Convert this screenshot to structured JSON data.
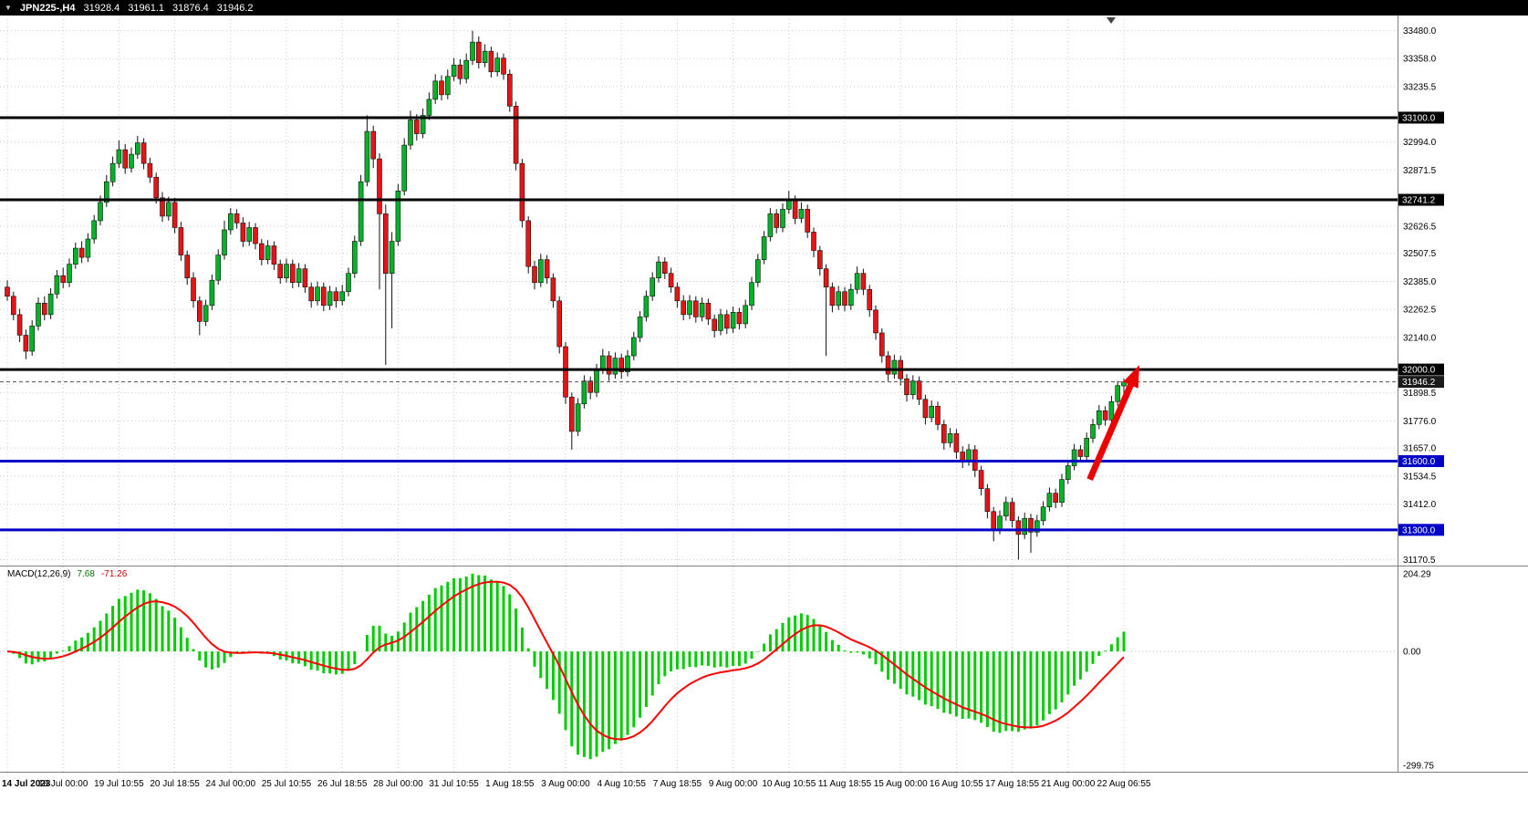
{
  "title_bar": {
    "symbol_period": "JPN225-,H4",
    "open": "31928.4",
    "high": "31961.1",
    "low": "31876.4",
    "close": "31946.2"
  },
  "colors": {
    "background": "#FFFFFF",
    "titlebar_bg": "#000000",
    "titlebar_text": "#FFFFFF",
    "grid": "#c9c9c9",
    "bull": "#00B327",
    "bear": "#E61414",
    "wick": "#111111",
    "level_black": "#000000",
    "level_blue": "#0000C8",
    "macd_hist": "#00CC00",
    "macd_signal": "#FF0000",
    "arrow": "#EC0000",
    "axis_text": "#000000"
  },
  "chart_data": {
    "type": "candlestick",
    "symbol": "JPN225-",
    "timeframe": "H4",
    "ohlc_current": {
      "open": 31928.4,
      "high": 31961.1,
      "low": 31876.4,
      "close": 31946.2
    },
    "y_range": {
      "top": 33546,
      "bottom": 31144
    },
    "bars_per_x_label": 9,
    "x_labels": [
      "14 Jul 2023",
      "18 Jul 00:00",
      "19 Jul 10:55",
      "20 Jul 18:55",
      "24 Jul 00:00",
      "25 Jul 10:55",
      "26 Jul 18:55",
      "28 Jul 00:00",
      "31 Jul 10:55",
      "1 Aug 18:55",
      "3 Aug 00:00",
      "4 Aug 10:55",
      "7 Aug 18:55",
      "9 Aug 00:00",
      "10 Aug 10:55",
      "11 Aug 18:55",
      "15 Aug 00:00",
      "16 Aug 10:55",
      "17 Aug 18:55",
      "21 Aug 00:00",
      "22 Aug 06:55"
    ],
    "price_gridline_labels": [
      33480.0,
      33358.0,
      33235.5,
      32994.0,
      32871.5,
      32626.5,
      32507.5,
      32385.0,
      32262.5,
      32140.0,
      31898.5,
      31776.0,
      31657.0,
      31534.5,
      31412.0,
      31170.5
    ],
    "levels": [
      {
        "price": 33100.0,
        "color": "#000000",
        "width": 3
      },
      {
        "price": 32741.2,
        "color": "#000000",
        "width": 3
      },
      {
        "price": 32000.0,
        "color": "#000000",
        "width": 3
      },
      {
        "price": 31600.0,
        "color": "#0000C8",
        "width": 3
      },
      {
        "price": 31300.0,
        "color": "#0000C8",
        "width": 3
      }
    ],
    "current_price": {
      "value": 31946.2,
      "label": "31946.2"
    },
    "arrow": {
      "bar1": 174.5,
      "price1": 31520,
      "bar2": 182.5,
      "price2": 32020,
      "color": "#EC0000"
    },
    "macd": {
      "label": "MACD(12,26,9)",
      "params": "12,26,9",
      "main_value": "7.68",
      "signal_value": "-71.26",
      "axis_max_label": "204.29",
      "axis_zero_label": "0.00",
      "axis_min_label": "-299.75",
      "histogram_color": "#00CC00",
      "signal_color": "#FF0000"
    },
    "candles": [
      [
        32360,
        32390,
        32300,
        32320
      ],
      [
        32320,
        32340,
        32215,
        32240
      ],
      [
        32240,
        32265,
        32120,
        32150
      ],
      [
        32150,
        32175,
        32045,
        32080
      ],
      [
        32080,
        32215,
        32060,
        32190
      ],
      [
        32190,
        32315,
        32170,
        32290
      ],
      [
        32290,
        32320,
        32215,
        32240
      ],
      [
        32240,
        32355,
        32220,
        32330
      ],
      [
        32330,
        32435,
        32310,
        32410
      ],
      [
        32410,
        32445,
        32355,
        32380
      ],
      [
        32380,
        32485,
        32360,
        32460
      ],
      [
        32460,
        32555,
        32440,
        32530
      ],
      [
        32530,
        32560,
        32465,
        32490
      ],
      [
        32490,
        32595,
        32470,
        32570
      ],
      [
        32570,
        32675,
        32550,
        32650
      ],
      [
        32650,
        32760,
        32630,
        32730
      ],
      [
        32730,
        32850,
        32710,
        32820
      ],
      [
        32820,
        32930,
        32800,
        32900
      ],
      [
        32900,
        33000,
        32880,
        32960
      ],
      [
        32960,
        32985,
        32855,
        32880
      ],
      [
        32880,
        32970,
        32860,
        32940
      ],
      [
        32940,
        33020,
        32920,
        32990
      ],
      [
        32990,
        33010,
        32875,
        32900
      ],
      [
        32900,
        32925,
        32815,
        32840
      ],
      [
        32840,
        32860,
        32725,
        32750
      ],
      [
        32750,
        32775,
        32645,
        32670
      ],
      [
        32670,
        32755,
        32650,
        32730
      ],
      [
        32730,
        32750,
        32595,
        32620
      ],
      [
        32620,
        32645,
        32475,
        32500
      ],
      [
        32500,
        32520,
        32370,
        32400
      ],
      [
        32400,
        32425,
        32270,
        32300
      ],
      [
        32300,
        32320,
        32150,
        32210
      ],
      [
        32210,
        32305,
        32190,
        32280
      ],
      [
        32280,
        32415,
        32260,
        32390
      ],
      [
        32390,
        32525,
        32370,
        32500
      ],
      [
        32500,
        32650,
        32480,
        32610
      ],
      [
        32610,
        32705,
        32590,
        32680
      ],
      [
        32680,
        32700,
        32615,
        32640
      ],
      [
        32640,
        32665,
        32535,
        32560
      ],
      [
        32560,
        32645,
        32540,
        32620
      ],
      [
        32620,
        32640,
        32525,
        32550
      ],
      [
        32550,
        32570,
        32455,
        32480
      ],
      [
        32480,
        32565,
        32460,
        32540
      ],
      [
        32540,
        32560,
        32435,
        32460
      ],
      [
        32460,
        32480,
        32375,
        32400
      ],
      [
        32400,
        32485,
        32380,
        32460
      ],
      [
        32460,
        32480,
        32355,
        32380
      ],
      [
        32380,
        32465,
        32360,
        32440
      ],
      [
        32440,
        32460,
        32335,
        32360
      ],
      [
        32360,
        32380,
        32270,
        32300
      ],
      [
        32300,
        32385,
        32280,
        32360
      ],
      [
        32360,
        32380,
        32255,
        32280
      ],
      [
        32280,
        32365,
        32260,
        32340
      ],
      [
        32340,
        32360,
        32270,
        32300
      ],
      [
        32300,
        32370,
        32280,
        32340
      ],
      [
        32340,
        32445,
        32320,
        32420
      ],
      [
        32420,
        32585,
        32400,
        32560
      ],
      [
        32560,
        32850,
        32540,
        32820
      ],
      [
        32820,
        33110,
        32800,
        33040
      ],
      [
        33040,
        33065,
        32880,
        32920
      ],
      [
        32920,
        32945,
        32350,
        32680
      ],
      [
        32680,
        32720,
        32020,
        32420
      ],
      [
        32420,
        32600,
        32180,
        32560
      ],
      [
        32560,
        32810,
        32540,
        32780
      ],
      [
        32780,
        33010,
        32760,
        32980
      ],
      [
        32980,
        33130,
        32960,
        33090
      ],
      [
        33090,
        33115,
        33000,
        33030
      ],
      [
        33030,
        33140,
        33010,
        33110
      ],
      [
        33110,
        33210,
        33090,
        33180
      ],
      [
        33180,
        33290,
        33160,
        33260
      ],
      [
        33260,
        33285,
        33175,
        33200
      ],
      [
        33200,
        33310,
        33180,
        33280
      ],
      [
        33280,
        33360,
        33260,
        33330
      ],
      [
        33330,
        33355,
        33245,
        33270
      ],
      [
        33270,
        33380,
        33250,
        33350
      ],
      [
        33350,
        33480,
        33330,
        33430
      ],
      [
        33430,
        33455,
        33315,
        33340
      ],
      [
        33340,
        33420,
        33320,
        33390
      ],
      [
        33390,
        33410,
        33275,
        33300
      ],
      [
        33300,
        33385,
        33280,
        33360
      ],
      [
        33360,
        33380,
        33265,
        33290
      ],
      [
        33290,
        33310,
        33125,
        33150
      ],
      [
        33150,
        33170,
        32870,
        32900
      ],
      [
        32900,
        32920,
        32620,
        32650
      ],
      [
        32650,
        32670,
        32420,
        32450
      ],
      [
        32450,
        32475,
        32350,
        32380
      ],
      [
        32380,
        32505,
        32360,
        32480
      ],
      [
        32480,
        32500,
        32375,
        32400
      ],
      [
        32400,
        32420,
        32270,
        32300
      ],
      [
        32300,
        32320,
        32070,
        32100
      ],
      [
        32100,
        32120,
        31850,
        31880
      ],
      [
        31880,
        31900,
        31650,
        31730
      ],
      [
        31730,
        31875,
        31710,
        31850
      ],
      [
        31850,
        31975,
        31830,
        31950
      ],
      [
        31950,
        31970,
        31870,
        31900
      ],
      [
        31900,
        32025,
        31880,
        32000
      ],
      [
        32000,
        32090,
        31980,
        32060
      ],
      [
        32060,
        32080,
        31950,
        31980
      ],
      [
        31980,
        32075,
        31960,
        32050
      ],
      [
        32050,
        32070,
        31960,
        31990
      ],
      [
        31990,
        32085,
        31970,
        32060
      ],
      [
        32060,
        32165,
        32040,
        32140
      ],
      [
        32140,
        32255,
        32120,
        32230
      ],
      [
        32230,
        32345,
        32210,
        32320
      ],
      [
        32320,
        32425,
        32300,
        32400
      ],
      [
        32400,
        32495,
        32380,
        32470
      ],
      [
        32470,
        32490,
        32395,
        32420
      ],
      [
        32420,
        32445,
        32335,
        32360
      ],
      [
        32360,
        32380,
        32270,
        32300
      ],
      [
        32300,
        32325,
        32215,
        32240
      ],
      [
        32240,
        32325,
        32220,
        32300
      ],
      [
        32300,
        32320,
        32205,
        32230
      ],
      [
        32230,
        32315,
        32210,
        32290
      ],
      [
        32290,
        32310,
        32195,
        32220
      ],
      [
        32220,
        32240,
        32140,
        32170
      ],
      [
        32170,
        32265,
        32150,
        32240
      ],
      [
        32240,
        32260,
        32155,
        32180
      ],
      [
        32180,
        32275,
        32160,
        32250
      ],
      [
        32250,
        32270,
        32175,
        32200
      ],
      [
        32200,
        32305,
        32180,
        32280
      ],
      [
        32280,
        32405,
        32260,
        32380
      ],
      [
        32380,
        32505,
        32360,
        32480
      ],
      [
        32480,
        32605,
        32460,
        32580
      ],
      [
        32580,
        32705,
        32560,
        32680
      ],
      [
        32680,
        32700,
        32595,
        32620
      ],
      [
        32620,
        32725,
        32600,
        32700
      ],
      [
        32700,
        32780,
        32680,
        32740
      ],
      [
        32740,
        32760,
        32635,
        32660
      ],
      [
        32660,
        32730,
        32640,
        32700
      ],
      [
        32700,
        32720,
        32575,
        32600
      ],
      [
        32600,
        32620,
        32490,
        32520
      ],
      [
        32520,
        32540,
        32410,
        32440
      ],
      [
        32440,
        32460,
        32060,
        32360
      ],
      [
        32360,
        32380,
        32250,
        32280
      ],
      [
        32280,
        32365,
        32260,
        32340
      ],
      [
        32340,
        32360,
        32255,
        32280
      ],
      [
        32280,
        32375,
        32260,
        32350
      ],
      [
        32350,
        32450,
        32330,
        32420
      ],
      [
        32420,
        32440,
        32325,
        32350
      ],
      [
        32350,
        32370,
        32230,
        32260
      ],
      [
        32260,
        32280,
        32130,
        32160
      ],
      [
        32160,
        32180,
        32030,
        32060
      ],
      [
        32060,
        32080,
        31950,
        31980
      ],
      [
        31980,
        32065,
        31960,
        32040
      ],
      [
        32040,
        32060,
        31930,
        31960
      ],
      [
        31960,
        31980,
        31860,
        31890
      ],
      [
        31890,
        31975,
        31870,
        31950
      ],
      [
        31950,
        31970,
        31845,
        31870
      ],
      [
        31870,
        31890,
        31760,
        31790
      ],
      [
        31790,
        31865,
        31770,
        31840
      ],
      [
        31840,
        31860,
        31735,
        31760
      ],
      [
        31760,
        31780,
        31650,
        31680
      ],
      [
        31680,
        31745,
        31660,
        31720
      ],
      [
        31720,
        31740,
        31610,
        31640
      ],
      [
        31640,
        31665,
        31570,
        31600
      ],
      [
        31600,
        31675,
        31580,
        31650
      ],
      [
        31650,
        31670,
        31530,
        31560
      ],
      [
        31560,
        31580,
        31450,
        31480
      ],
      [
        31480,
        31500,
        31350,
        31380
      ],
      [
        31380,
        31400,
        31250,
        31300
      ],
      [
        31300,
        31385,
        31280,
        31360
      ],
      [
        31360,
        31445,
        31340,
        31420
      ],
      [
        31420,
        31440,
        31310,
        31340
      ],
      [
        31340,
        31360,
        31170,
        31280
      ],
      [
        31280,
        31375,
        31260,
        31350
      ],
      [
        31350,
        31370,
        31200,
        31290
      ],
      [
        31290,
        31365,
        31270,
        31340
      ],
      [
        31340,
        31425,
        31320,
        31400
      ],
      [
        31400,
        31485,
        31380,
        31460
      ],
      [
        31460,
        31480,
        31395,
        31420
      ],
      [
        31420,
        31545,
        31400,
        31520
      ],
      [
        31520,
        31605,
        31500,
        31580
      ],
      [
        31580,
        31675,
        31560,
        31650
      ],
      [
        31650,
        31670,
        31595,
        31620
      ],
      [
        31620,
        31725,
        31600,
        31700
      ],
      [
        31700,
        31785,
        31680,
        31760
      ],
      [
        31760,
        31845,
        31740,
        31820
      ],
      [
        31820,
        31840,
        31755,
        31780
      ],
      [
        31780,
        31885,
        31760,
        31860
      ],
      [
        31860,
        31950,
        31840,
        31930
      ],
      [
        31928.4,
        31961.1,
        31876.4,
        31946.2
      ]
    ]
  }
}
